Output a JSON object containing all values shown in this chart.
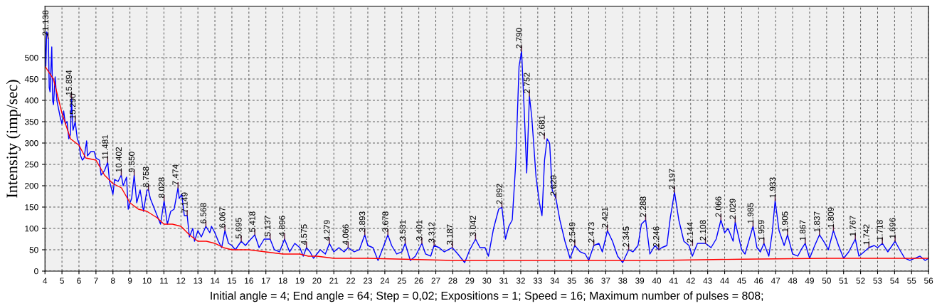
{
  "chart_data": {
    "type": "line",
    "xlabel": "Initial angle = 4; End angle = 64; Step = 0,02; Expositions = 1; Speed = 16; Maximum number of pulses = 808;",
    "ylabel": "Intensity (imp/sec)",
    "xlim": [
      4,
      56
    ],
    "xticks": [
      4,
      5,
      6,
      7,
      8,
      9,
      10,
      11,
      12,
      13,
      14,
      15,
      16,
      17,
      18,
      19,
      20,
      21,
      22,
      23,
      24,
      25,
      26,
      27,
      28,
      29,
      30,
      31,
      32,
      33,
      34,
      35,
      36,
      37,
      38,
      39,
      40,
      41,
      42,
      43,
      44,
      45,
      46,
      47,
      48,
      49,
      50,
      51,
      52,
      53,
      54,
      55,
      56
    ],
    "ylim": [
      0,
      620
    ],
    "yticks": [
      0,
      50,
      100,
      150,
      200,
      250,
      300,
      350,
      400,
      450,
      500
    ],
    "grid": true,
    "line_style": "solid",
    "marker": "none",
    "series": [
      {
        "color": "#0000ff",
        "x": [
          4.0,
          4.05,
          4.1,
          4.2,
          4.25,
          4.3,
          4.4,
          4.45,
          4.5,
          4.6,
          4.7,
          4.8,
          4.9,
          5.0,
          5.1,
          5.2,
          5.3,
          5.4,
          5.5,
          5.56,
          5.65,
          5.78,
          5.9,
          6.0,
          6.1,
          6.2,
          6.3,
          6.45,
          6.5,
          6.7,
          6.9,
          7.0,
          7.2,
          7.3,
          7.5,
          7.69,
          7.8,
          8.0,
          8.1,
          8.3,
          8.49,
          8.6,
          8.8,
          8.9,
          9.0,
          9.1,
          9.25,
          9.4,
          9.6,
          9.8,
          10.0,
          10.09,
          10.2,
          10.5,
          10.8,
          11.01,
          11.2,
          11.4,
          11.6,
          11.83,
          11.9,
          12.05,
          12.2,
          12.37,
          12.5,
          12.7,
          12.8,
          13.0,
          13.2,
          13.47,
          13.7,
          13.8,
          14.0,
          14.2,
          14.4,
          14.59,
          14.8,
          15.0,
          15.2,
          15.55,
          15.8,
          16.0,
          16.35,
          16.6,
          16.9,
          17.25,
          17.5,
          17.8,
          18.1,
          18.4,
          18.7,
          19.0,
          19.2,
          19.39,
          19.6,
          19.8,
          20.0,
          20.2,
          20.5,
          20.74,
          21.0,
          21.3,
          21.6,
          21.84,
          22.2,
          22.5,
          22.82,
          23.0,
          23.3,
          23.6,
          23.8,
          24.18,
          24.4,
          24.7,
          25.0,
          25.2,
          25.5,
          25.8,
          26.18,
          26.4,
          26.7,
          26.9,
          27.2,
          27.5,
          27.97,
          28.3,
          28.7,
          29.0,
          29.34,
          29.6,
          29.9,
          30.1,
          30.4,
          30.7,
          30.89,
          31.1,
          31.3,
          31.5,
          31.7,
          31.9,
          32.05,
          32.2,
          32.35,
          32.51,
          32.65,
          32.9,
          33.1,
          33.25,
          33.4,
          33.55,
          33.7,
          33.85,
          34.07,
          34.3,
          34.6,
          34.9,
          35.18,
          35.5,
          35.8,
          36.0,
          36.3,
          36.6,
          36.8,
          37.1,
          37.4,
          37.7,
          38.0,
          38.35,
          38.6,
          38.9,
          39.1,
          39.35,
          39.6,
          39.9,
          40.12,
          40.3,
          40.6,
          40.8,
          41.05,
          41.3,
          41.6,
          41.9,
          42.1,
          42.4,
          42.87,
          43.2,
          43.5,
          43.78,
          44.0,
          44.2,
          44.5,
          44.62,
          45.0,
          45.2,
          45.67,
          45.9,
          46.1,
          46.31,
          46.6,
          46.8,
          46.97,
          47.2,
          47.5,
          47.7,
          48.0,
          48.3,
          48.5,
          48.74,
          49.0,
          49.3,
          49.58,
          49.9,
          50.1,
          50.4,
          50.7,
          51.0,
          51.3,
          51.69,
          51.9,
          52.2,
          52.49,
          52.8,
          53.0,
          53.28,
          53.6,
          54.03,
          54.3,
          54.6,
          54.9,
          55.2,
          55.5,
          55.8,
          56.0
        ],
        "values": [
          545,
          480,
          560,
          545,
          430,
          420,
          525,
          400,
          390,
          455,
          400,
          380,
          360,
          345,
          375,
          345,
          350,
          310,
          320,
          405,
          330,
          350,
          310,
          300,
          270,
          260,
          265,
          305,
          270,
          280,
          280,
          265,
          260,
          225,
          235,
          255,
          210,
          180,
          215,
          210,
          225,
          200,
          220,
          145,
          160,
          170,
          225,
          160,
          190,
          140,
          190,
          190,
          170,
          140,
          110,
          165,
          110,
          140,
          145,
          195,
          170,
          180,
          130,
          130,
          80,
          100,
          70,
          95,
          80,
          105,
          90,
          105,
          90,
          70,
          55,
          95,
          65,
          60,
          50,
          70,
          60,
          70,
          85,
          55,
          75,
          75,
          50,
          45,
          75,
          45,
          65,
          55,
          35,
          55,
          45,
          30,
          40,
          50,
          40,
          65,
          45,
          55,
          45,
          55,
          45,
          50,
          85,
          60,
          55,
          25,
          45,
          85,
          60,
          40,
          45,
          65,
          25,
          35,
          65,
          40,
          35,
          60,
          55,
          45,
          55,
          40,
          20,
          50,
          75,
          55,
          55,
          35,
          100,
          145,
          150,
          75,
          105,
          120,
          250,
          480,
          515,
          380,
          230,
          410,
          360,
          220,
          160,
          130,
          260,
          310,
          300,
          190,
          170,
          120,
          70,
          30,
          60,
          45,
          40,
          25,
          60,
          65,
          45,
          95,
          70,
          35,
          20,
          50,
          45,
          60,
          110,
          120,
          40,
          60,
          50,
          55,
          60,
          125,
          185,
          120,
          70,
          60,
          35,
          65,
          65,
          55,
          75,
          120,
          90,
          100,
          70,
          115,
          50,
          40,
          105,
          55,
          45,
          65,
          35,
          90,
          165,
          95,
          60,
          85,
          40,
          35,
          50,
          65,
          30,
          60,
          85,
          65,
          50,
          95,
          60,
          30,
          45,
          75,
          35,
          45,
          55,
          60,
          55,
          65,
          45,
          70,
          50,
          30,
          25,
          30,
          35,
          25,
          30
        ]
      },
      {
        "color": "#ff0000",
        "x": [
          4,
          4.5,
          5,
          5.5,
          6,
          6.4,
          7,
          7.5,
          8,
          8.5,
          9,
          9.5,
          10,
          10.6,
          11,
          11.5,
          12,
          12.5,
          13,
          13.5,
          14,
          14.5,
          15,
          16,
          17,
          18,
          19,
          19.5,
          20,
          21,
          23,
          26,
          28,
          30,
          35,
          40,
          45,
          50,
          56
        ],
        "values": [
          480,
          450,
          370,
          310,
          295,
          265,
          260,
          225,
          205,
          195,
          160,
          145,
          140,
          125,
          110,
          110,
          105,
          85,
          70,
          70,
          65,
          55,
          50,
          50,
          45,
          40,
          40,
          35,
          35,
          30,
          30,
          27,
          25,
          25,
          25,
          25,
          28,
          30,
          30
        ]
      }
    ],
    "annotations": [
      {
        "text": "21.138",
        "x": 4.18,
        "y": 545
      },
      {
        "text": "15.894",
        "x": 5.56,
        "y": 405
      },
      {
        "text": "15.290",
        "x": 5.78,
        "y": 350
      },
      {
        "text": "11.481",
        "x": 7.69,
        "y": 255
      },
      {
        "text": "10.402",
        "x": 8.49,
        "y": 225
      },
      {
        "text": "9.550",
        "x": 9.25,
        "y": 225
      },
      {
        "text": "8.758",
        "x": 10.09,
        "y": 190
      },
      {
        "text": "8.028",
        "x": 11.01,
        "y": 165
      },
      {
        "text": "7.474",
        "x": 11.83,
        "y": 195
      },
      {
        "text": "7.149",
        "x": 12.37,
        "y": 130
      },
      {
        "text": "6.568",
        "x": 13.47,
        "y": 105
      },
      {
        "text": "6.067",
        "x": 14.59,
        "y": 95
      },
      {
        "text": "5.695",
        "x": 15.55,
        "y": 70
      },
      {
        "text": "5.418",
        "x": 16.35,
        "y": 85
      },
      {
        "text": "5.137",
        "x": 17.25,
        "y": 75
      },
      {
        "text": "4.896",
        "x": 18.1,
        "y": 75
      },
      {
        "text": "4.575",
        "x": 19.39,
        "y": 55
      },
      {
        "text": "4.279",
        "x": 20.74,
        "y": 65
      },
      {
        "text": "4.066",
        "x": 21.84,
        "y": 55
      },
      {
        "text": "3.893",
        "x": 22.82,
        "y": 85
      },
      {
        "text": "3.678",
        "x": 24.18,
        "y": 85
      },
      {
        "text": "3.531",
        "x": 25.2,
        "y": 65
      },
      {
        "text": "3.401",
        "x": 26.18,
        "y": 65
      },
      {
        "text": "3.312",
        "x": 26.9,
        "y": 60
      },
      {
        "text": "3.187",
        "x": 27.97,
        "y": 55
      },
      {
        "text": "3.042",
        "x": 29.34,
        "y": 75
      },
      {
        "text": "2.892",
        "x": 30.89,
        "y": 150
      },
      {
        "text": "2.790",
        "x": 32.05,
        "y": 515
      },
      {
        "text": "2.752",
        "x": 32.51,
        "y": 410
      },
      {
        "text": "2.681",
        "x": 33.39,
        "y": 310
      },
      {
        "text": "2.629",
        "x": 34.07,
        "y": 170
      },
      {
        "text": "2.549",
        "x": 35.18,
        "y": 60
      },
      {
        "text": "2.473",
        "x": 36.3,
        "y": 60
      },
      {
        "text": "2.421",
        "x": 37.1,
        "y": 95
      },
      {
        "text": "2.345",
        "x": 38.35,
        "y": 50
      },
      {
        "text": "2.288",
        "x": 39.35,
        "y": 120
      },
      {
        "text": "2.246",
        "x": 40.12,
        "y": 50
      },
      {
        "text": "2.197",
        "x": 41.05,
        "y": 185
      },
      {
        "text": "2.144",
        "x": 42.11,
        "y": 60
      },
      {
        "text": "2.108",
        "x": 42.87,
        "y": 65
      },
      {
        "text": "2.066",
        "x": 43.78,
        "y": 120
      },
      {
        "text": "2.029",
        "x": 44.62,
        "y": 115
      },
      {
        "text": "1.985",
        "x": 45.67,
        "y": 105
      },
      {
        "text": "1.959",
        "x": 46.31,
        "y": 65
      },
      {
        "text": "1.933",
        "x": 46.97,
        "y": 165
      },
      {
        "text": "1.905",
        "x": 47.7,
        "y": 85
      },
      {
        "text": "1.867",
        "x": 48.74,
        "y": 65
      },
      {
        "text": "1.837",
        "x": 49.58,
        "y": 85
      },
      {
        "text": "1.809",
        "x": 50.4,
        "y": 95
      },
      {
        "text": "1.767",
        "x": 51.69,
        "y": 75
      },
      {
        "text": "1.742",
        "x": 52.49,
        "y": 55
      },
      {
        "text": "1.718",
        "x": 53.28,
        "y": 65
      },
      {
        "text": "1.696",
        "x": 54.03,
        "y": 70
      }
    ]
  }
}
